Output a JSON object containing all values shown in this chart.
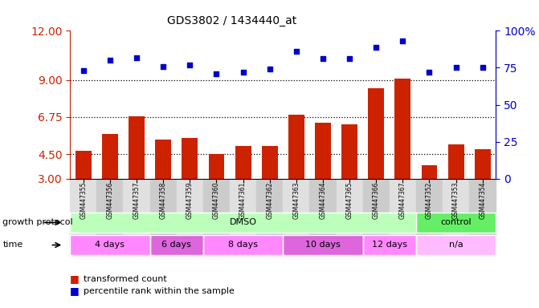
{
  "title": "GDS3802 / 1434440_at",
  "samples": [
    "GSM447355",
    "GSM447356",
    "GSM447357",
    "GSM447358",
    "GSM447359",
    "GSM447360",
    "GSM447361",
    "GSM447362",
    "GSM447363",
    "GSM447364",
    "GSM447365",
    "GSM447366",
    "GSM447367",
    "GSM447352",
    "GSM447353",
    "GSM447354"
  ],
  "bar_values": [
    4.7,
    5.7,
    6.8,
    5.4,
    5.5,
    4.5,
    5.0,
    5.0,
    6.9,
    6.4,
    6.3,
    8.5,
    9.1,
    3.8,
    5.1,
    4.8
  ],
  "scatter_values": [
    73,
    80,
    82,
    76,
    77,
    71,
    72,
    74,
    86,
    81,
    81,
    89,
    93,
    72,
    75,
    75
  ],
  "bar_color": "#cc2200",
  "scatter_color": "#0000cc",
  "ylim_left": [
    3,
    12
  ],
  "ylim_right": [
    0,
    100
  ],
  "yticks_left": [
    3,
    4.5,
    6.75,
    9,
    12
  ],
  "yticks_right": [
    0,
    25,
    50,
    75,
    100
  ],
  "hlines": [
    4.5,
    6.75,
    9
  ],
  "protocol_groups": [
    {
      "label": "DMSO",
      "start": 0,
      "end": 12,
      "color": "#bbffbb"
    },
    {
      "label": "control",
      "start": 13,
      "end": 15,
      "color": "#66ee66"
    }
  ],
  "time_groups": [
    {
      "label": "4 days",
      "start": 0,
      "end": 2,
      "color": "#ff88ff"
    },
    {
      "label": "6 days",
      "start": 3,
      "end": 4,
      "color": "#dd66dd"
    },
    {
      "label": "8 days",
      "start": 5,
      "end": 7,
      "color": "#ff88ff"
    },
    {
      "label": "10 days",
      "start": 8,
      "end": 10,
      "color": "#dd66dd"
    },
    {
      "label": "12 days",
      "start": 11,
      "end": 12,
      "color": "#ff88ff"
    },
    {
      "label": "n/a",
      "start": 13,
      "end": 15,
      "color": "#ffbbff"
    }
  ],
  "legend_bar_label": "transformed count",
  "legend_scatter_label": "percentile rank within the sample",
  "protocol_label": "growth protocol",
  "time_label": "time",
  "bg_color": "#ffffff",
  "plot_bg_color": "#ffffff",
  "right_axis_color": "#0000cc",
  "left_axis_color": "#cc2200"
}
